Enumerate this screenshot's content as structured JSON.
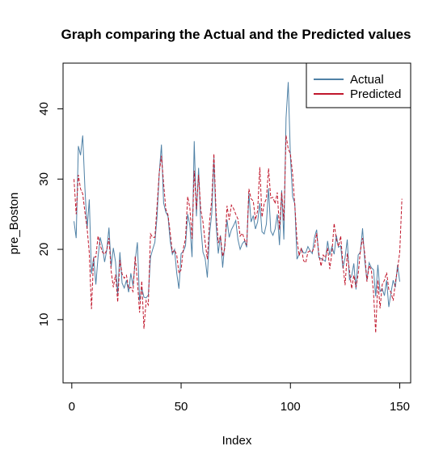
{
  "chart_data": {
    "type": "line",
    "title": "Graph comparing the Actual and the Predicted values",
    "xlabel": "Index",
    "ylabel": "pre_Boston",
    "xlim": [
      -4,
      155
    ],
    "ylim": [
      1,
      46.5
    ],
    "xticks": [
      0,
      50,
      100,
      150
    ],
    "yticks": [
      10,
      20,
      30,
      40
    ],
    "legend_position": "top-right",
    "colors": {
      "actual": "#4f81a6",
      "predicted": "#c0172c"
    },
    "x_start": 1,
    "series": [
      {
        "name": "Actual",
        "values": [
          24,
          21.6,
          34.7,
          33.4,
          36.2,
          28.7,
          22.9,
          27.1,
          16.5,
          18.9,
          15,
          18.9,
          21.7,
          20.4,
          18.2,
          19.9,
          23.1,
          17.5,
          20.2,
          18.2,
          13.6,
          19.6,
          15.2,
          14.5,
          15.6,
          13.9,
          16.6,
          14.8,
          18.4,
          21,
          12.7,
          14.5,
          13.2,
          13.1,
          13.5,
          18.9,
          20,
          21,
          24.7,
          30.8,
          34.9,
          26.6,
          25.3,
          24.7,
          21.2,
          19.3,
          20,
          16.6,
          14.4,
          19.4,
          19.7,
          20.5,
          25,
          23.4,
          18.9,
          35.4,
          24.7,
          31.6,
          23.3,
          19.6,
          18.7,
          16,
          22.2,
          25,
          33,
          23.5,
          19.4,
          22,
          17.4,
          20.9,
          24.2,
          21.7,
          22.8,
          23.4,
          24.1,
          21.4,
          20,
          20.8,
          21.2,
          20.3,
          28,
          23.9,
          24.8,
          22.9,
          23.9,
          26.6,
          22.5,
          22.2,
          23.6,
          28.7,
          22.6,
          22,
          22.9,
          25,
          20.6,
          28.4,
          21.4,
          38.7,
          43.8,
          33.2,
          27.5,
          26.5,
          18.6,
          19.3,
          20.1,
          19.5,
          19.5,
          20.4,
          19.8,
          19.4,
          21.7,
          22.8,
          18.8,
          18.7,
          18.5,
          18.3,
          21.2,
          19.2,
          20.4,
          19.3,
          22,
          20.3,
          20.5,
          17.3,
          18.8,
          21.4,
          15.7,
          16.2,
          18,
          14.3,
          19.2,
          19.6,
          23,
          18.4,
          15.6,
          18.1,
          17.4,
          17.1,
          13.3,
          17.8,
          14,
          14.4,
          13.4,
          15.6,
          11.8,
          13.8,
          15.6,
          14.6,
          17.8,
          15.4
        ]
      },
      {
        "name": "Predicted",
        "values": [
          30,
          25,
          30.6,
          28.6,
          27.9,
          25.3,
          23,
          19.5,
          11.5,
          18.9,
          18.9,
          21.9,
          20.6,
          19.6,
          19.3,
          19.9,
          21.6,
          16.9,
          14.6,
          16.4,
          12.5,
          18.5,
          16.5,
          15.9,
          16.3,
          14.4,
          14.6,
          14,
          19,
          15.5,
          11,
          15.5,
          8.7,
          12.7,
          12.1,
          22.2,
          21.7,
          21.7,
          26.2,
          30.9,
          33.3,
          29.4,
          25.7,
          24.9,
          22.4,
          19.6,
          19.9,
          19.2,
          16.6,
          17.1,
          20.1,
          21.5,
          27.5,
          25.9,
          21.5,
          31.2,
          25.7,
          30.6,
          25.6,
          23.9,
          21,
          18.6,
          23.9,
          27,
          33.6,
          25.3,
          20.9,
          21.9,
          19,
          20.2,
          26.2,
          24.2,
          26.3,
          25.8,
          25,
          24.3,
          21.9,
          22.3,
          21.4,
          20.6,
          28.6,
          27.2,
          26.9,
          24.2,
          25.5,
          31.7,
          24.6,
          26.5,
          27.2,
          31.5,
          27.3,
          27.4,
          26.5,
          28.1,
          22.8,
          28.1,
          24.1,
          36.2,
          34.3,
          33.6,
          30.7,
          26.3,
          21.4,
          19.1,
          20.2,
          18.4,
          18.1,
          19.6,
          19.8,
          19.7,
          20.3,
          22.3,
          19.4,
          17.6,
          19.2,
          18.8,
          20.2,
          17.2,
          19.6,
          23.7,
          21.4,
          20.4,
          21.9,
          17.9,
          14.9,
          19.4,
          17,
          14.4,
          16.3,
          14.6,
          16.5,
          19.8,
          21.6,
          19.4,
          15.4,
          17.7,
          17.1,
          13.9,
          8.1,
          15.6,
          11.6,
          15,
          15.6,
          16.7,
          14.3,
          13.9,
          12.7,
          15.3,
          17.2,
          19.6,
          27.2
        ]
      }
    ]
  }
}
